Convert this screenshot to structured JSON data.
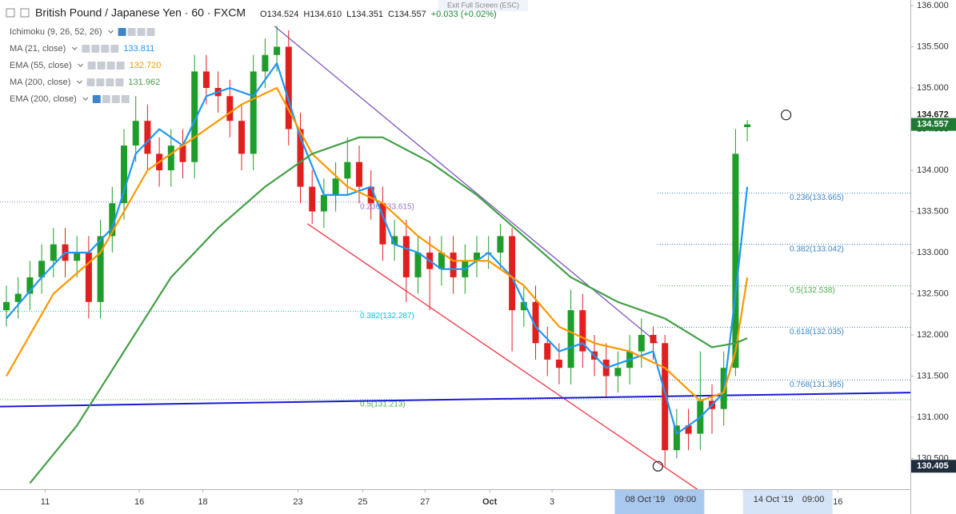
{
  "chart_data": {
    "type": "candlestick",
    "title": "British Pound / Japanese Yen · 60 · FXCM",
    "ohlc_header": [
      "O134.524",
      "H134.610",
      "L134.351",
      "C134.557",
      "+0.033 (+0.02%)"
    ],
    "overlay_text": "Exit Full Screen (ESC)",
    "up_color": "#1f9d2a",
    "down_color": "#e0201e",
    "open": [
      132.3,
      132.4,
      132.5,
      132.7,
      132.9,
      133.1,
      132.9,
      133.0,
      132.4,
      133.2,
      133.6,
      134.3,
      134.6,
      134.2,
      134.0,
      134.3,
      134.1,
      135.2,
      135.0,
      134.9,
      134.6,
      134.2,
      135.2,
      135.4,
      135.5,
      134.5,
      133.8,
      133.5,
      133.7,
      133.9,
      134.1,
      133.8,
      133.6,
      133.1,
      133.2,
      132.7,
      133.0,
      132.8,
      133.0,
      132.7,
      132.9,
      133.0,
      133.0,
      133.2,
      132.3,
      132.4,
      131.9,
      131.7,
      131.6,
      132.3,
      131.8,
      131.7,
      131.5,
      131.6,
      131.8,
      132.0,
      131.9,
      130.6,
      130.9,
      130.8,
      131.2,
      131.1,
      131.6,
      134.524
    ],
    "high": [
      132.6,
      132.7,
      132.9,
      133.1,
      133.3,
      133.3,
      133.2,
      133.2,
      133.4,
      133.8,
      134.5,
      134.9,
      134.8,
      134.4,
      134.5,
      134.5,
      135.4,
      135.4,
      135.2,
      135.1,
      134.8,
      135.4,
      135.6,
      135.75,
      135.7,
      134.7,
      134.0,
      133.9,
      134.1,
      134.4,
      134.3,
      134.0,
      133.8,
      133.4,
      133.4,
      133.2,
      133.2,
      133.2,
      133.2,
      133.1,
      133.2,
      133.2,
      133.35,
      133.3,
      132.6,
      132.6,
      132.1,
      131.9,
      132.55,
      132.5,
      132.0,
      131.9,
      131.8,
      132.0,
      132.2,
      132.1,
      132.0,
      131.1,
      131.1,
      131.8,
      131.4,
      131.8,
      134.5,
      134.61
    ],
    "low": [
      132.1,
      132.2,
      132.3,
      132.5,
      132.7,
      132.7,
      132.7,
      132.2,
      132.2,
      133.0,
      133.4,
      134.1,
      134.0,
      133.8,
      133.8,
      133.9,
      133.9,
      134.8,
      134.7,
      134.4,
      134.0,
      134.0,
      135.0,
      135.2,
      134.3,
      133.6,
      133.35,
      133.3,
      133.5,
      133.7,
      133.6,
      133.4,
      132.9,
      132.9,
      132.4,
      132.5,
      132.3,
      132.6,
      132.5,
      132.5,
      132.7,
      132.8,
      132.8,
      131.8,
      132.1,
      131.7,
      131.5,
      131.4,
      131.4,
      131.6,
      131.5,
      131.25,
      131.3,
      131.4,
      131.6,
      131.7,
      130.405,
      130.5,
      130.6,
      130.6,
      130.8,
      130.9,
      131.5,
      134.351
    ],
    "close": [
      132.4,
      132.5,
      132.7,
      132.9,
      133.1,
      132.9,
      133.0,
      132.4,
      133.2,
      133.6,
      134.3,
      134.6,
      134.2,
      134.0,
      134.3,
      134.1,
      135.2,
      135.0,
      134.9,
      134.6,
      134.2,
      135.2,
      135.4,
      135.5,
      134.5,
      133.8,
      133.5,
      133.7,
      133.9,
      134.1,
      133.8,
      133.6,
      133.1,
      133.2,
      132.7,
      133.0,
      132.8,
      133.0,
      132.7,
      132.9,
      133.0,
      133.0,
      133.2,
      132.3,
      132.4,
      131.9,
      131.7,
      131.6,
      132.3,
      131.8,
      131.7,
      131.5,
      131.6,
      131.8,
      132.0,
      131.9,
      130.6,
      130.9,
      130.8,
      131.2,
      131.1,
      131.6,
      134.2,
      134.557
    ],
    "series": [
      {
        "name": "Ichimoku (9, 26, 52, 26)",
        "hidden": true
      },
      {
        "name": "MA (21, close)",
        "color": "#2196f3",
        "value": 133.811,
        "x": [
          0,
          3,
          5,
          7,
          9,
          11,
          13,
          15,
          17,
          19,
          21,
          23,
          25,
          27,
          29,
          31,
          33,
          35,
          37,
          39,
          41,
          43,
          45,
          47,
          49,
          51,
          53,
          55,
          57,
          59,
          61,
          62,
          63
        ],
        "values": [
          132.2,
          132.7,
          133.0,
          133.0,
          133.3,
          134.2,
          134.5,
          134.3,
          134.9,
          135.0,
          134.9,
          135.3,
          134.4,
          133.7,
          133.7,
          133.8,
          133.1,
          133.0,
          132.8,
          132.8,
          133.0,
          132.7,
          132.1,
          131.8,
          131.9,
          131.6,
          131.7,
          131.8,
          130.8,
          131.0,
          131.3,
          132.5,
          133.8
        ]
      },
      {
        "name": "EMA (55, close)",
        "color": "#ff9800",
        "value": 132.72,
        "value_label": "132.720",
        "x": [
          0,
          4,
          8,
          12,
          16,
          20,
          23,
          26,
          29,
          32,
          35,
          38,
          41,
          44,
          47,
          50,
          53,
          56,
          59,
          61,
          62,
          63
        ],
        "values": [
          131.5,
          132.5,
          133.0,
          134.0,
          134.4,
          134.8,
          135.0,
          134.2,
          133.8,
          133.6,
          133.2,
          132.9,
          132.9,
          132.6,
          132.1,
          131.9,
          131.8,
          131.6,
          131.2,
          131.3,
          131.8,
          132.7
        ]
      },
      {
        "name": "MA (200, close)",
        "color": "#43a047",
        "value": 131.962,
        "x": [
          2,
          6,
          10,
          14,
          18,
          22,
          26,
          30,
          32,
          36,
          40,
          44,
          48,
          52,
          56,
          60,
          62,
          63
        ],
        "values": [
          130.2,
          130.9,
          131.8,
          132.7,
          133.3,
          133.8,
          134.2,
          134.4,
          134.4,
          134.1,
          133.7,
          133.2,
          132.7,
          132.4,
          132.2,
          131.85,
          131.9,
          131.96
        ]
      },
      {
        "name": "EMA (200, close)",
        "hidden": true
      }
    ],
    "drawings": [
      {
        "color": "#7e57c2",
        "points": [
          [
            22.8,
            135.75
          ],
          [
            55.4,
            131.9
          ]
        ]
      },
      {
        "color": "#f23645",
        "points": [
          [
            25.6,
            133.35
          ],
          [
            59,
            130.1
          ]
        ]
      },
      {
        "color": "#1a1ad6",
        "points": [
          [
            -0.55,
            131.13
          ],
          [
            76.9,
            131.3
          ]
        ]
      }
    ],
    "fib_left": [
      {
        "label": "0.236(133.615)",
        "value": 133.615,
        "color": "#9575cd"
      },
      {
        "label": "0.382(132.287)",
        "value": 132.287,
        "color": "#00c8d8"
      },
      {
        "label": "0.5(131.213)",
        "value": 131.213,
        "color": "#4caf50"
      }
    ],
    "fib_right": [
      {
        "label": "0.236(133.665)",
        "value": 133.665,
        "color": "#3d85c6"
      },
      {
        "label": "0.382(133.042)",
        "value": 133.042,
        "color": "#3d85c6"
      },
      {
        "label": "0.5(132.538)",
        "value": 132.538,
        "color": "#4caf50"
      },
      {
        "label": "0.618(132.035)",
        "value": 132.035,
        "color": "#3d85c6"
      },
      {
        "label": "0.768(131.395)",
        "value": 131.395,
        "color": "#3d85c6"
      }
    ],
    "markers": [
      [
        66.3,
        134.672
      ],
      [
        55.4,
        130.405
      ]
    ],
    "price_labels": [
      {
        "value": 134.672,
        "label": "134.672",
        "bg": "#ffffff",
        "fg": "#222222"
      },
      {
        "value": 134.557,
        "label": "134.557",
        "bg": "#1e7a34",
        "fg": "#ffffff"
      },
      {
        "value": 130.405,
        "label": "130.405",
        "bg": "#1f2d3d",
        "fg": "#ffffff"
      }
    ],
    "ylim": [
      130.126,
      136.068
    ],
    "yticks": [
      {
        "value": 130.5,
        "label": "130.500"
      },
      {
        "value": 131,
        "label": "131.000"
      },
      {
        "value": 131.5,
        "label": "131.500"
      },
      {
        "value": 132,
        "label": "132.000"
      },
      {
        "value": 132.5,
        "label": "132.500"
      },
      {
        "value": 133,
        "label": "133.000"
      },
      {
        "value": 133.5,
        "label": "133.500"
      },
      {
        "value": 134,
        "label": "134.000"
      },
      {
        "value": 134.5,
        "label": "134.500"
      },
      {
        "value": 135,
        "label": "135.000"
      },
      {
        "value": 135.5,
        "label": "135.500"
      },
      {
        "value": 136,
        "label": "136.000"
      }
    ],
    "xticks": [
      {
        "value": 3.3,
        "label": "11"
      },
      {
        "value": 11.3,
        "label": "16"
      },
      {
        "value": 16.7,
        "label": "18"
      },
      {
        "value": 24.8,
        "label": "23"
      },
      {
        "value": 30.3,
        "label": "25"
      },
      {
        "value": 35.6,
        "label": "27"
      },
      {
        "value": 41.1,
        "label": "Oct"
      },
      {
        "value": 46.4,
        "label": "3"
      },
      {
        "value": 70.7,
        "label": "16"
      }
    ],
    "time_labels": [
      {
        "value": 55.4,
        "label": "08 Oct '19",
        "time": "09:00"
      },
      {
        "value": 66.3,
        "label": "14 Oct '19",
        "time": "09:00"
      }
    ],
    "grid": false
  }
}
